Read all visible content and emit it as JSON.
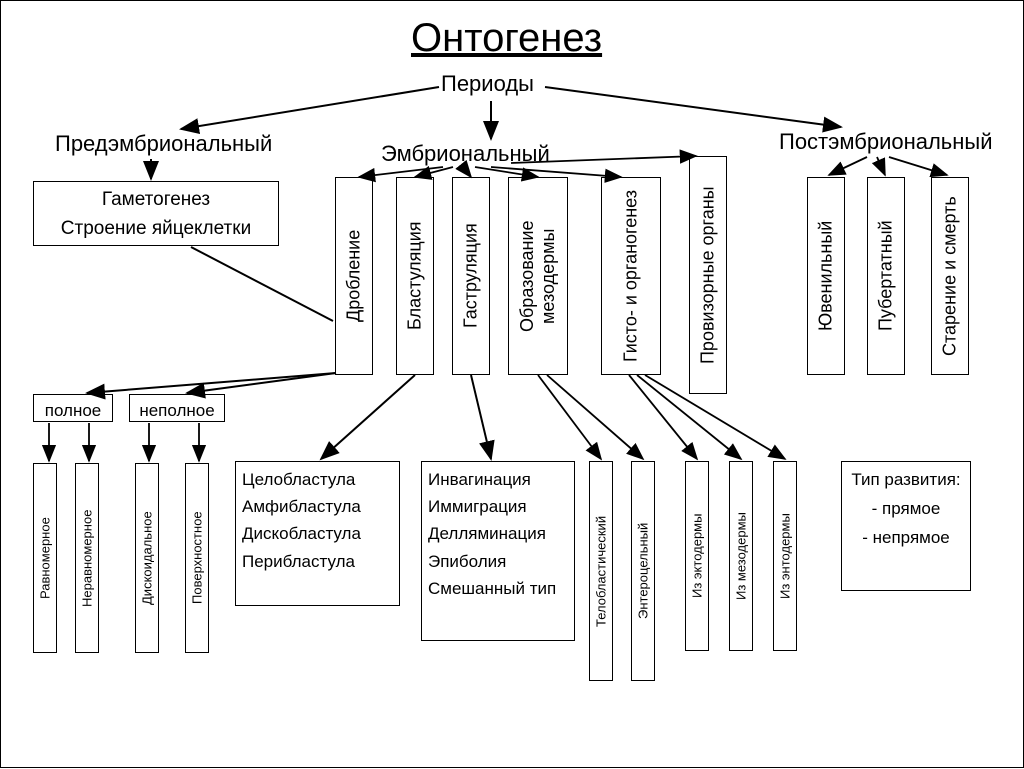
{
  "title": "Онтогенез",
  "root": "Периоды",
  "periods": {
    "pre": "Предэмбриональный",
    "emb": "Эмбриональный",
    "post": "Постэмбриональный"
  },
  "preBox": "Гаметогенез\nСтроение яйцеклетки",
  "embStages": {
    "droblenie": "Дробление",
    "blastulyatsiya": "Бластуляция",
    "gastrulyatsiya": "Гаструляция",
    "mezoderma": "Образование мезодермы",
    "gisto": "Гисто- и органогенез",
    "provizor": "Провизорные органы"
  },
  "postStages": {
    "yuven": "Ювенильный",
    "pubert": "Пубертатный",
    "stare": "Старение и смерть"
  },
  "droblenie": {
    "polnoe": "полное",
    "nepolnoe": "неполное",
    "ravno": "Равномерное",
    "neravno": "Неравномерное",
    "disko": "Дискоидальное",
    "poverh": "Поверхностное"
  },
  "blastBox": "Целобластула\nАмфибластула\nДискобластула\nПерибластула",
  "gastBox": "Инвагинация\nИммиграция\nДелляминация\nЭпиболия\nСмешанный тип",
  "mezoTypes": {
    "telo": "Телобластический",
    "entero": "Энтероцельный"
  },
  "gistoSrc": {
    "ekto": "Из эктодермы",
    "mezo": "Из мезодермы",
    "ento": "Из энтодермы"
  },
  "devType": "Тип развития:\n- прямое\n- непрямое",
  "style": {
    "bg": "#ffffff",
    "border": "#000000",
    "text": "#000000",
    "arrow": "#000000",
    "title_fontsize": 40,
    "label_fontsize": 22,
    "box_fontsize": 17,
    "vbox_fontsize": 18,
    "vbox_small_fontsize": 13
  }
}
